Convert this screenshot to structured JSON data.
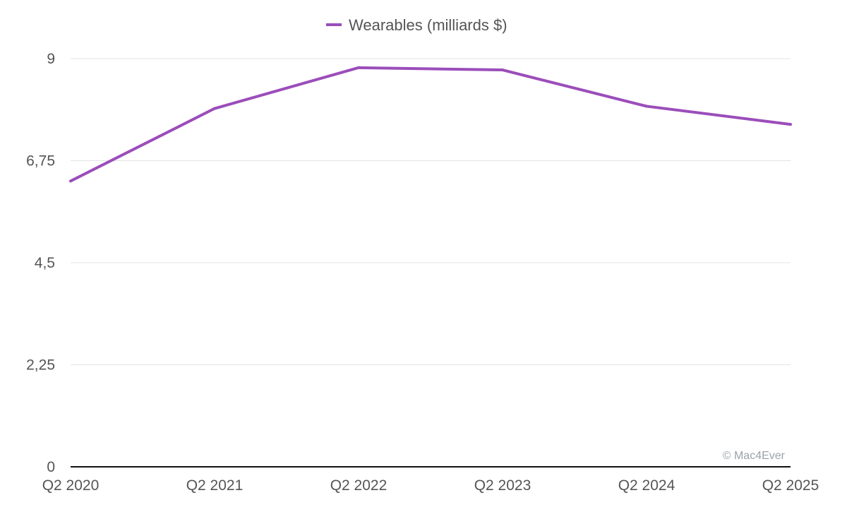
{
  "chart_data": {
    "type": "line",
    "title": "",
    "xlabel": "",
    "ylabel": "",
    "categories": [
      "Q2 2020",
      "Q2 2021",
      "Q2 2022",
      "Q2 2023",
      "Q2 2024",
      "Q2 2025"
    ],
    "series": [
      {
        "name": "Wearables (milliards $)",
        "color": "#9b4dba",
        "values": [
          6.3,
          7.9,
          8.8,
          8.75,
          7.95,
          7.55
        ]
      }
    ],
    "y_ticks": [
      0,
      2.25,
      4.5,
      6.75,
      9
    ],
    "y_tick_labels": [
      "0",
      "2,25",
      "4,5",
      "6,75",
      "9"
    ],
    "ylim": [
      0,
      9
    ],
    "grid": true,
    "legend_position": "top-center",
    "credit": "© Mac4Ever"
  }
}
